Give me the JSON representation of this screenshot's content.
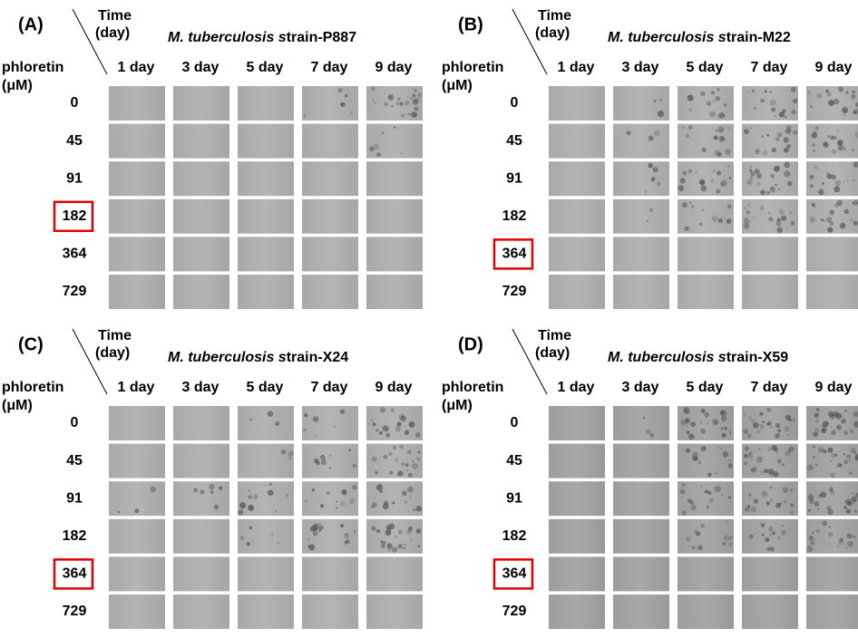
{
  "panels": [
    {
      "label": "(A)",
      "time_label": [
        "Time",
        "(day)"
      ],
      "conc_label": [
        "phloretin",
        "(μM)"
      ],
      "title": {
        "italic": "M. tuberculosis s",
        "rest": "train-P887"
      },
      "columns": [
        "1 day",
        "3 day",
        "5 day",
        "7 day",
        "9 day"
      ],
      "rows": [
        "0",
        "45",
        "91",
        "182",
        "364",
        "729"
      ],
      "highlight": 3
    },
    {
      "label": "(B)",
      "time_label": [
        "Time",
        "(day)"
      ],
      "conc_label": [
        "phloretin",
        "(μM)"
      ],
      "title": {
        "italic": "M. tuberculosis s",
        "rest": "train-M22"
      },
      "columns": [
        "1 day",
        "3 day",
        "5 day",
        "7 day",
        "9 day"
      ],
      "rows": [
        "0",
        "45",
        "91",
        "182",
        "364",
        "729"
      ],
      "highlight": 4
    },
    {
      "label": "(C)",
      "time_label": [
        "Time",
        "(day)"
      ],
      "conc_label": [
        "phloretin",
        "(μM)"
      ],
      "title": {
        "italic": "M. tuberculosis s",
        "rest": "train-X24"
      },
      "columns": [
        "1 day",
        "3 day",
        "5 day",
        "7 day",
        "9 day"
      ],
      "rows": [
        "0",
        "45",
        "91",
        "182",
        "364",
        "729"
      ],
      "highlight": 4
    },
    {
      "label": "(D)",
      "time_label": [
        "Time",
        "(day)"
      ],
      "conc_label": [
        "phloretin",
        "(μM)"
      ],
      "title": {
        "italic": "M. tuberculosis s",
        "rest": "train-X59"
      },
      "columns": [
        "1 day",
        "3 day",
        "5 day",
        "7 day",
        "9 day"
      ],
      "rows": [
        "0",
        "45",
        "91",
        "182",
        "364",
        "729"
      ],
      "highlight": 4
    }
  ]
}
